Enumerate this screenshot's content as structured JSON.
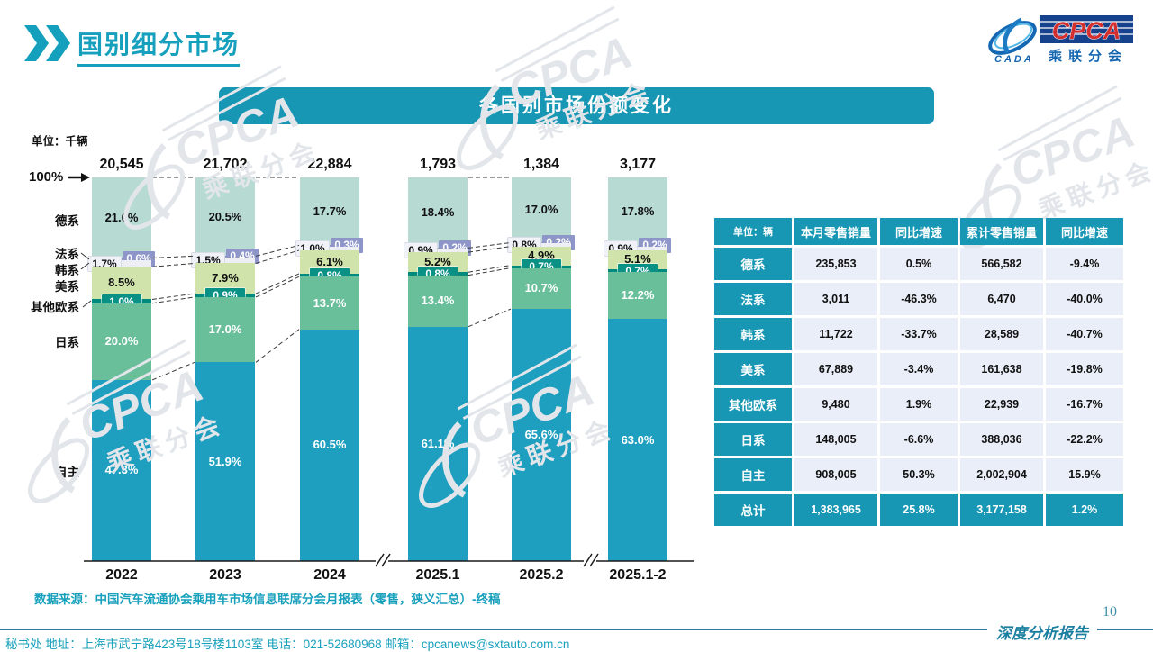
{
  "header": {
    "title": "国别细分市场"
  },
  "logo": {
    "cada": "CADA",
    "cpca": "CPCA",
    "sub": "乘联分会"
  },
  "banner": {
    "title": "各国别市场份额变化"
  },
  "chart": {
    "unit": "单位：千辆",
    "y_top_label": "100%"
  },
  "chart_data": {
    "type": "bar",
    "stacked": true,
    "unit": "千辆",
    "title": "各国别市场份额变化",
    "categories": [
      "2022",
      "2023",
      "2024",
      "2025.1",
      "2025.2",
      "2025.1-2"
    ],
    "totals": [
      "20,545",
      "21,702",
      "22,884",
      "1,793",
      "1,384",
      "3,177"
    ],
    "axis_breaks_after": [
      "2024",
      "2025.2"
    ],
    "ylim": [
      0,
      100
    ],
    "series": [
      {
        "name": "自主",
        "color": "#1f9fbf",
        "label_style": "inside-white",
        "values": [
          47.3,
          51.9,
          60.5,
          61.1,
          65.6,
          63.0
        ]
      },
      {
        "name": "日系",
        "color": "#6abf9b",
        "label_style": "inside-white",
        "values": [
          20.0,
          17.0,
          13.7,
          13.4,
          10.7,
          12.2
        ]
      },
      {
        "name": "其他欧系",
        "color": "#008a7e",
        "label_style": "badge-teal",
        "values": [
          1.0,
          0.9,
          0.8,
          0.8,
          0.7,
          0.7
        ]
      },
      {
        "name": "美系",
        "color": "#cfe3ab",
        "label_style": "inside-black",
        "values": [
          8.5,
          7.9,
          6.1,
          5.2,
          4.9,
          5.1
        ]
      },
      {
        "name": "韩系",
        "color": "#edeff5",
        "label_style": "badge-gray",
        "values": [
          1.7,
          1.5,
          1.0,
          0.9,
          0.8,
          0.9
        ]
      },
      {
        "name": "法系",
        "color": "#8e96c9",
        "label_style": "badge-purple",
        "values": [
          0.6,
          0.4,
          0.3,
          0.2,
          0.2,
          0.2
        ]
      },
      {
        "name": "德系",
        "color": "#b7dad3",
        "label_style": "inside-black",
        "values": [
          21.0,
          20.5,
          17.7,
          18.4,
          17.0,
          17.8
        ]
      }
    ]
  },
  "source": {
    "text": "数据来源：中国汽车流通协会乘用车市场信息联席分会月报表（零售，狭义汇总）-终稿"
  },
  "table": {
    "headers": [
      "单位：辆",
      "本月零售销量",
      "同比增速",
      "累计零售销量",
      "同比增速"
    ],
    "rows": [
      [
        "德系",
        "235,853",
        "0.5%",
        "566,582",
        "-9.4%"
      ],
      [
        "法系",
        "3,011",
        "-46.3%",
        "6,470",
        "-40.0%"
      ],
      [
        "韩系",
        "11,722",
        "-33.7%",
        "28,589",
        "-40.7%"
      ],
      [
        "美系",
        "67,889",
        "-3.4%",
        "161,638",
        "-19.8%"
      ],
      [
        "其他欧系",
        "9,480",
        "1.9%",
        "22,939",
        "-16.7%"
      ],
      [
        "日系",
        "148,005",
        "-6.6%",
        "388,036",
        "-22.2%"
      ],
      [
        "自主",
        "908,005",
        "50.3%",
        "2,002,904",
        "15.9%"
      ]
    ],
    "total_row": [
      "总计",
      "1,383,965",
      "25.8%",
      "3,177,158",
      "1.2%"
    ]
  },
  "footer": {
    "secretariat": "秘书处  地址：上海市武宁路423号18号楼1103室 电话：021-52680968  邮箱：cpcanews@sxtauto.com.cn",
    "report_label": "深度分析报告",
    "page_number": "10"
  },
  "watermark": {
    "text_main": "CPCA",
    "text_sub": "乘联分会"
  }
}
